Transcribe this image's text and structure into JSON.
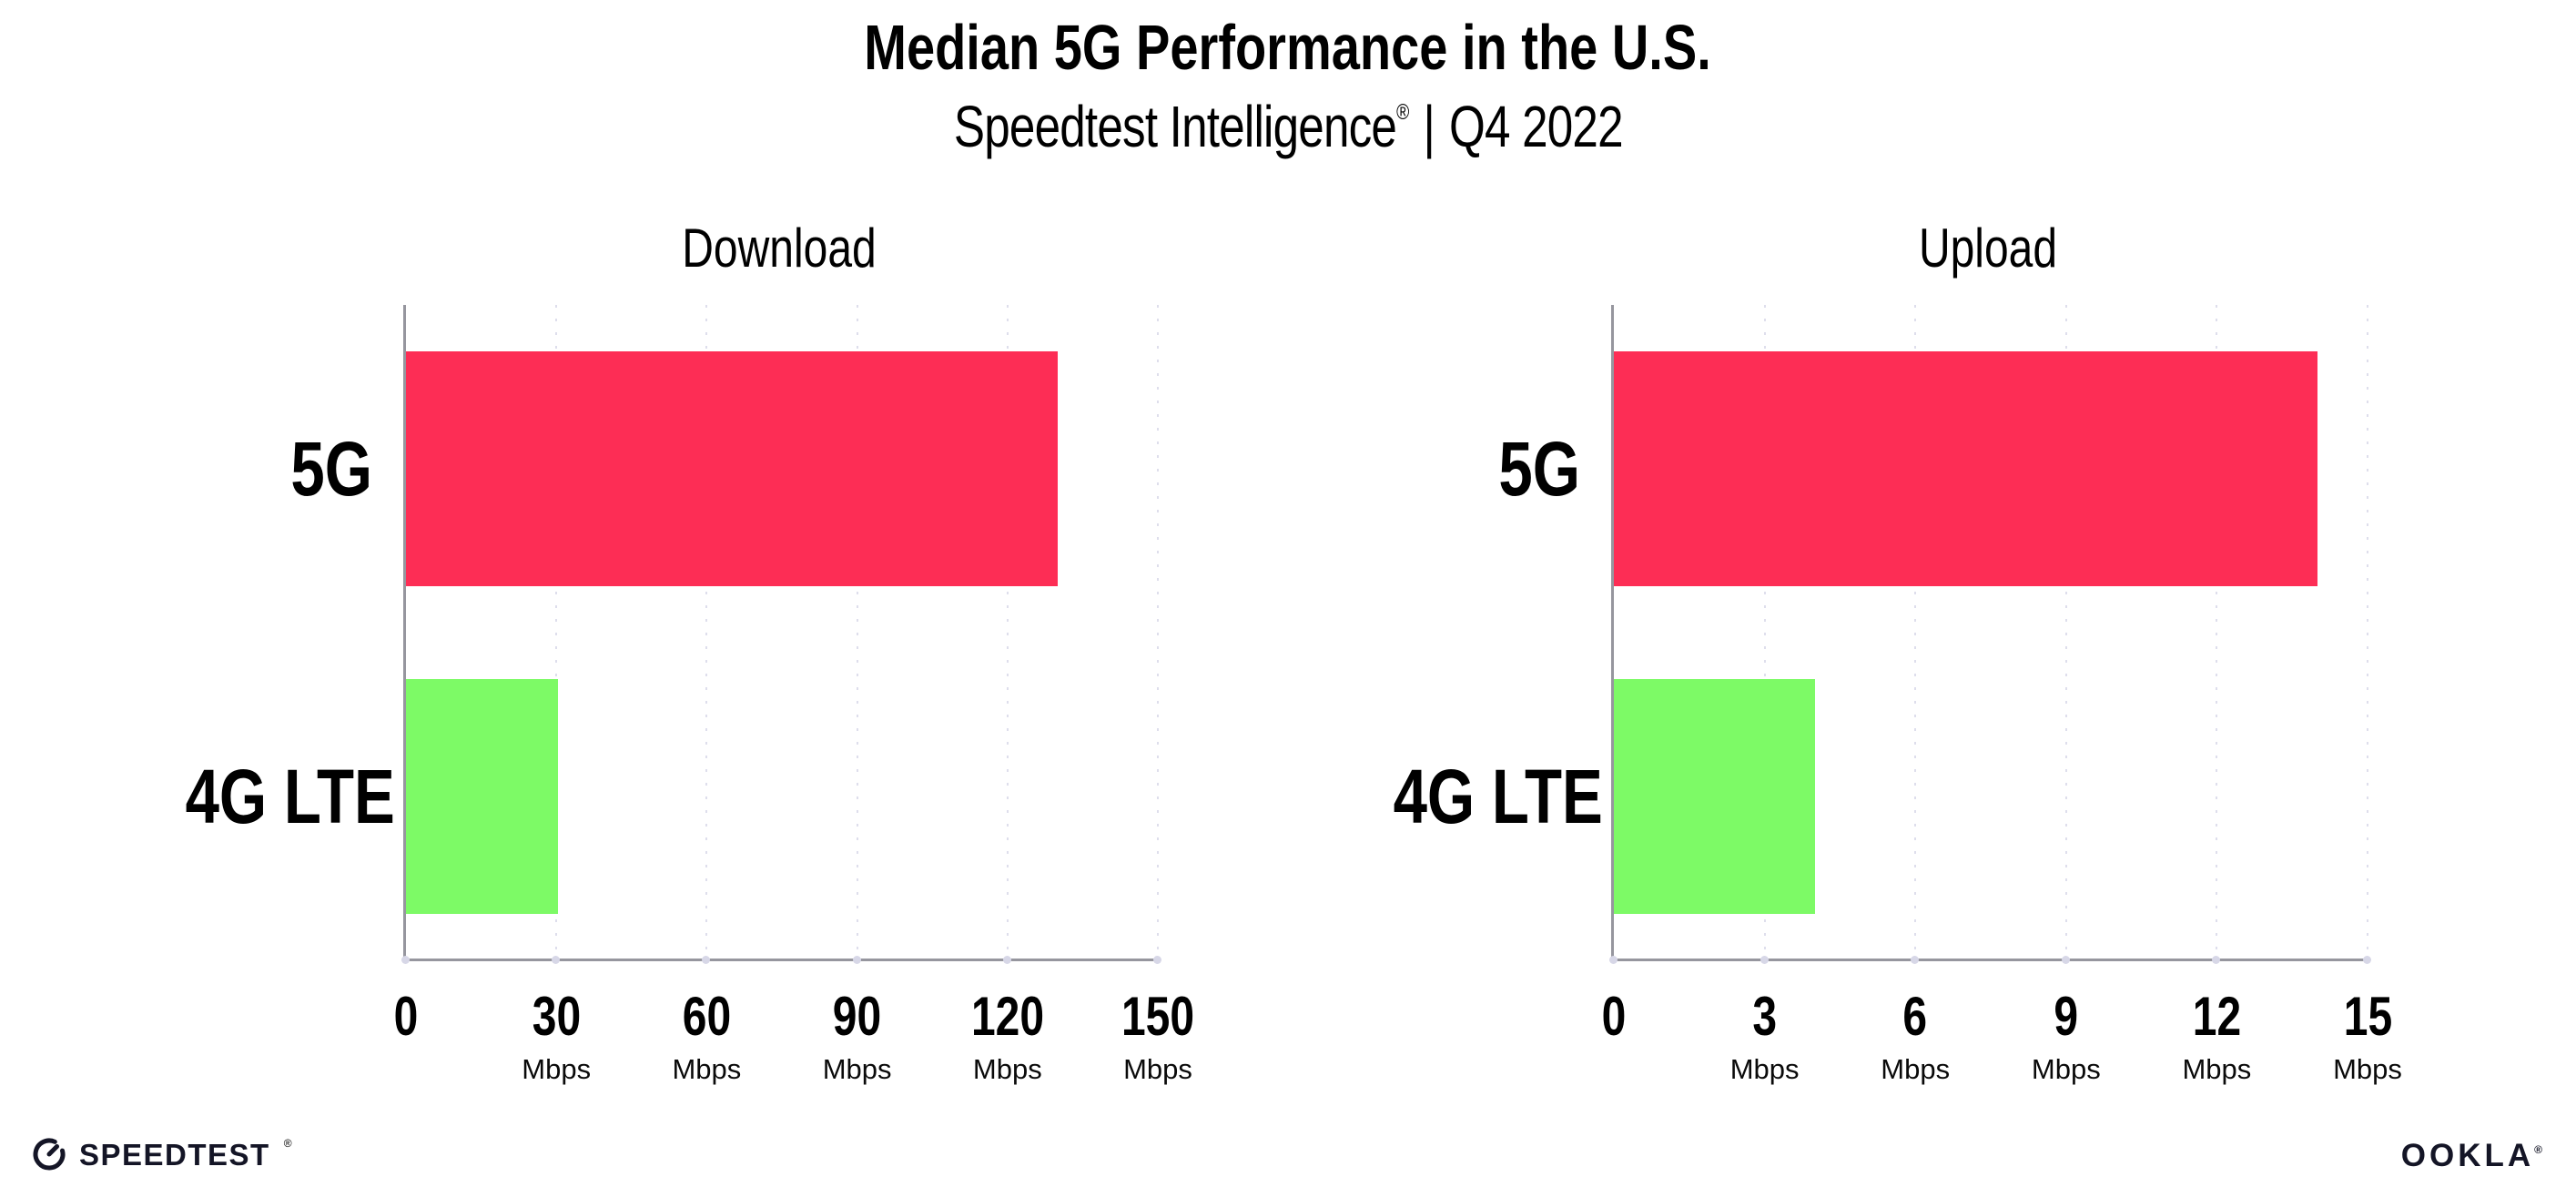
{
  "header": {
    "title": "Median 5G Performance in the U.S.",
    "subtitle": {
      "product": "Speedtest Intelligence",
      "registered": "®",
      "separator": "|",
      "period": "Q4 2022"
    }
  },
  "chart_data": [
    {
      "type": "bar",
      "orientation": "horizontal",
      "title": "Download",
      "categories": [
        "5G",
        "4G LTE"
      ],
      "values": [
        130,
        30.3
      ],
      "unit": "Mbps",
      "xlabel": "",
      "ylabel": "",
      "xlim": [
        0,
        150
      ],
      "xticks": [
        0,
        30,
        60,
        90,
        120,
        150
      ],
      "bar_colors": [
        "#FD2D55",
        "#7DFA66"
      ],
      "grid": "dotted-vertical",
      "legend": "none"
    },
    {
      "type": "bar",
      "orientation": "horizontal",
      "title": "Upload",
      "categories": [
        "5G",
        "4G LTE"
      ],
      "values": [
        14,
        4
      ],
      "unit": "Mbps",
      "xlabel": "",
      "ylabel": "",
      "xlim": [
        0,
        15
      ],
      "xticks": [
        0,
        3,
        6,
        9,
        12,
        15
      ],
      "bar_colors": [
        "#FD2D55",
        "#7DFA66"
      ],
      "grid": "dotted-vertical",
      "legend": "none"
    }
  ],
  "footer": {
    "speedtest_logo_text": "SPEEDTEST",
    "speedtest_registered": "®",
    "speedtest_icon": "gauge-icon",
    "ookla_logo_text": "OOKLA",
    "ookla_registered": "®"
  },
  "colors": {
    "bar_5g": "#FD2D55",
    "bar_4g_lte": "#7DFA66",
    "axis": "#96969E",
    "gridline": "#DEDEEC",
    "text": "#000000",
    "background": "#FFFFFF"
  }
}
